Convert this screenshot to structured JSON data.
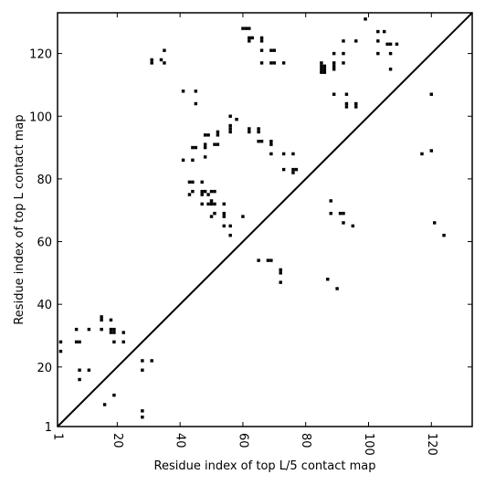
{
  "chart_data": {
    "type": "scatter",
    "xlabel": "Residue index of top L/5 contact map",
    "ylabel": "Residue index of top L contact map",
    "xlim": [
      1,
      133
    ],
    "ylim": [
      1,
      133
    ],
    "xticks": [
      1,
      20,
      40,
      60,
      80,
      100,
      120
    ],
    "yticks": [
      1,
      20,
      40,
      60,
      80,
      100,
      120
    ],
    "xtick_labels": [
      "1",
      "20",
      "40",
      "60",
      "80",
      "100",
      "120"
    ],
    "ytick_labels": [
      "1",
      "20",
      "40",
      "60",
      "80",
      "100",
      "120"
    ],
    "xtick_rotation": 270,
    "grid": false,
    "diagonal": true,
    "marker_color": "#000000",
    "series": [
      {
        "points": [
          [
            2,
            28
          ],
          [
            2,
            25
          ],
          [
            7,
            32
          ],
          [
            7,
            28
          ],
          [
            8,
            28
          ],
          [
            8,
            19
          ],
          [
            8,
            16
          ],
          [
            11,
            32
          ],
          [
            11,
            19
          ],
          [
            15,
            36
          ],
          [
            15,
            35
          ],
          [
            15,
            32
          ],
          [
            16,
            8
          ],
          [
            18,
            35
          ],
          [
            18,
            32
          ],
          [
            18,
            31
          ],
          [
            19,
            32
          ],
          [
            19,
            31
          ],
          [
            19,
            28
          ],
          [
            19,
            11
          ],
          [
            22,
            31
          ],
          [
            22,
            28
          ],
          [
            28,
            22
          ],
          [
            28,
            19
          ],
          [
            28,
            6
          ],
          [
            28,
            4
          ],
          [
            31,
            22
          ],
          [
            31,
            118
          ],
          [
            31,
            117
          ],
          [
            34,
            118
          ],
          [
            35,
            121
          ],
          [
            35,
            117
          ],
          [
            41,
            108
          ],
          [
            41,
            86
          ],
          [
            43,
            79
          ],
          [
            43,
            75
          ],
          [
            44,
            90
          ],
          [
            44,
            79
          ],
          [
            44,
            86
          ],
          [
            44,
            76
          ],
          [
            45,
            108
          ],
          [
            45,
            104
          ],
          [
            45,
            90
          ],
          [
            47,
            79
          ],
          [
            47,
            76
          ],
          [
            47,
            75
          ],
          [
            47,
            72
          ],
          [
            48,
            94
          ],
          [
            48,
            91
          ],
          [
            48,
            90
          ],
          [
            48,
            87
          ],
          [
            48,
            76
          ],
          [
            49,
            94
          ],
          [
            49,
            75
          ],
          [
            49,
            72
          ],
          [
            50,
            76
          ],
          [
            50,
            73
          ],
          [
            50,
            72
          ],
          [
            50,
            68
          ],
          [
            51,
            91
          ],
          [
            51,
            76
          ],
          [
            51,
            72
          ],
          [
            51,
            69
          ],
          [
            52,
            95
          ],
          [
            52,
            94
          ],
          [
            52,
            91
          ],
          [
            54,
            72
          ],
          [
            54,
            69
          ],
          [
            54,
            68
          ],
          [
            54,
            65
          ],
          [
            56,
            100
          ],
          [
            56,
            97
          ],
          [
            56,
            96
          ],
          [
            56,
            95
          ],
          [
            56,
            65
          ],
          [
            56,
            62
          ],
          [
            58,
            99
          ],
          [
            60,
            68
          ],
          [
            60,
            128
          ],
          [
            61,
            128
          ],
          [
            62,
            128
          ],
          [
            62,
            125
          ],
          [
            62,
            124
          ],
          [
            62,
            96
          ],
          [
            62,
            95
          ],
          [
            63,
            125
          ],
          [
            65,
            96
          ],
          [
            65,
            95
          ],
          [
            65,
            92
          ],
          [
            65,
            54
          ],
          [
            66,
            125
          ],
          [
            66,
            124
          ],
          [
            66,
            121
          ],
          [
            66,
            117
          ],
          [
            66,
            92
          ],
          [
            68,
            54
          ],
          [
            69,
            54
          ],
          [
            69,
            121
          ],
          [
            69,
            117
          ],
          [
            69,
            92
          ],
          [
            69,
            91
          ],
          [
            69,
            88
          ],
          [
            70,
            121
          ],
          [
            70,
            117
          ],
          [
            72,
            51
          ],
          [
            72,
            50
          ],
          [
            72,
            47
          ],
          [
            73,
            117
          ],
          [
            73,
            88
          ],
          [
            73,
            83
          ],
          [
            76,
            88
          ],
          [
            76,
            83
          ],
          [
            76,
            82
          ],
          [
            77,
            83
          ],
          [
            85,
            117
          ],
          [
            85,
            116
          ],
          [
            85,
            115
          ],
          [
            85,
            114
          ],
          [
            86,
            116
          ],
          [
            86,
            115
          ],
          [
            86,
            114
          ],
          [
            87,
            48
          ],
          [
            88,
            73
          ],
          [
            88,
            69
          ],
          [
            89,
            120
          ],
          [
            89,
            117
          ],
          [
            89,
            116
          ],
          [
            89,
            115
          ],
          [
            89,
            107
          ],
          [
            90,
            45
          ],
          [
            91,
            69
          ],
          [
            92,
            124
          ],
          [
            92,
            120
          ],
          [
            92,
            117
          ],
          [
            92,
            69
          ],
          [
            92,
            66
          ],
          [
            93,
            107
          ],
          [
            93,
            104
          ],
          [
            93,
            103
          ],
          [
            95,
            65
          ],
          [
            96,
            124
          ],
          [
            96,
            104
          ],
          [
            96,
            103
          ],
          [
            99,
            131
          ],
          [
            103,
            127
          ],
          [
            103,
            124
          ],
          [
            103,
            120
          ],
          [
            105,
            127
          ],
          [
            106,
            123
          ],
          [
            107,
            123
          ],
          [
            107,
            120
          ],
          [
            107,
            115
          ],
          [
            109,
            123
          ],
          [
            117,
            88
          ],
          [
            120,
            107
          ],
          [
            120,
            89
          ],
          [
            121,
            66
          ],
          [
            124,
            62
          ]
        ]
      }
    ]
  }
}
